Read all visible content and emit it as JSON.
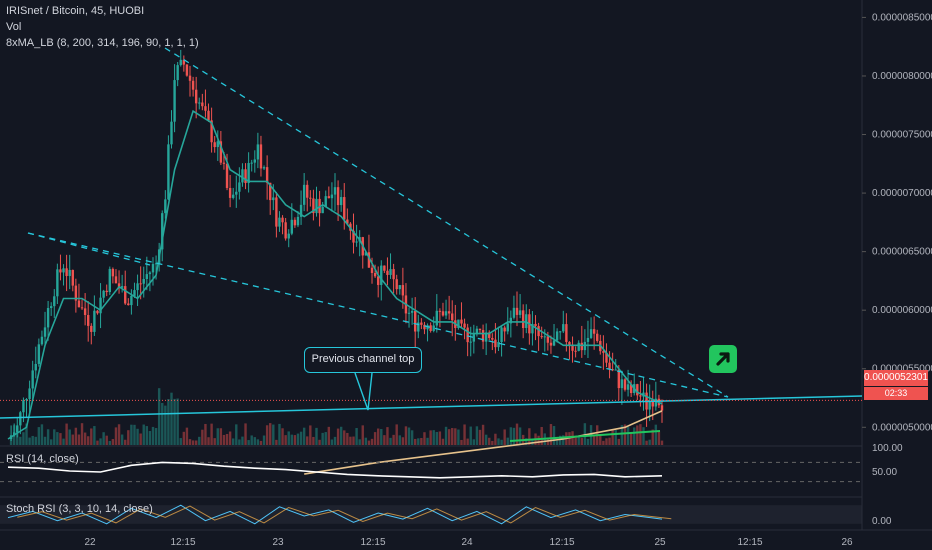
{
  "header": {
    "symbol_line": "IRISnet / Bitcoin, 45, HUOBI",
    "volume_label": "Vol",
    "ma_label": "8xMA_LB (8, 200, 314, 196, 90, 1, 1, 1)",
    "rsi_label": "RSI (14, close)",
    "stoch_label": "Stoch RSI (3, 3, 10, 14, close)"
  },
  "price_tag": "0.0000052301",
  "countdown": "02:33",
  "annotation": "Previous channel top",
  "colors": {
    "background": "#131722",
    "up": "#26a69a",
    "down": "#ef5350",
    "ma_fast": "#26a69a",
    "ma_slow": "#e6c28c",
    "trendline": "#26c6da",
    "green_line": "#22c55e",
    "rsi_line": "#ffffff"
  },
  "icons": {
    "signal": "arrow-up-right-icon"
  },
  "chart_data": [
    {
      "type": "candlestick",
      "title": "IRISnet / Bitcoin, 45, HUOBI",
      "x_ticks": [
        "22",
        "12:15",
        "23",
        "12:15",
        "24",
        "12:15",
        "25",
        "12:15",
        "26"
      ],
      "y_ticks": [
        "0.0000085000",
        "0.0000080000",
        "0.0000075000",
        "0.0000070000",
        "0.0000065000",
        "0.0000060000",
        "0.0000055000",
        "0.0000050000"
      ],
      "ylim": [
        4.9e-06,
        8.7e-06
      ],
      "last_price": 5.2301e-06,
      "close_path": [
        [
          0,
          4.9e-06
        ],
        [
          3,
          5e-06
        ],
        [
          6,
          5.3e-06
        ],
        [
          9,
          5.6e-06
        ],
        [
          12,
          5.9e-06
        ],
        [
          15,
          6.2e-06
        ],
        [
          18,
          6.4e-06
        ],
        [
          21,
          6.2e-06
        ],
        [
          24,
          6e-06
        ],
        [
          27,
          5.9e-06
        ],
        [
          30,
          6.1e-06
        ],
        [
          33,
          6.3e-06
        ],
        [
          36,
          6.2e-06
        ],
        [
          39,
          6.1e-06
        ],
        [
          42,
          6.2e-06
        ],
        [
          45,
          6.3e-06
        ],
        [
          48,
          6.4e-06
        ],
        [
          51,
          7e-06
        ],
        [
          54,
          8e-06
        ],
        [
          57,
          8.1e-06
        ],
        [
          60,
          7.9e-06
        ],
        [
          63,
          7.7e-06
        ],
        [
          66,
          7.5e-06
        ],
        [
          69,
          7.3e-06
        ],
        [
          72,
          6.9e-06
        ],
        [
          75,
          7.1e-06
        ],
        [
          78,
          7.2e-06
        ],
        [
          81,
          7.4e-06
        ],
        [
          84,
          7.1e-06
        ],
        [
          87,
          6.8e-06
        ],
        [
          90,
          6.7e-06
        ],
        [
          93,
          6.8e-06
        ],
        [
          96,
          7e-06
        ],
        [
          99,
          6.9e-06
        ],
        [
          102,
          6.9e-06
        ],
        [
          105,
          7e-06
        ],
        [
          108,
          6.9e-06
        ],
        [
          111,
          6.7e-06
        ],
        [
          114,
          6.6e-06
        ],
        [
          117,
          6.4e-06
        ],
        [
          120,
          6.3e-06
        ],
        [
          123,
          6.3e-06
        ],
        [
          126,
          6.2e-06
        ],
        [
          129,
          6e-06
        ],
        [
          132,
          5.9e-06
        ],
        [
          135,
          5.9e-06
        ],
        [
          138,
          5.9e-06
        ],
        [
          141,
          6e-06
        ],
        [
          144,
          5.9e-06
        ],
        [
          147,
          5.8e-06
        ],
        [
          150,
          5.8e-06
        ],
        [
          153,
          5.8e-06
        ],
        [
          156,
          5.8e-06
        ],
        [
          159,
          5.7e-06
        ],
        [
          162,
          5.9e-06
        ],
        [
          165,
          6e-06
        ],
        [
          168,
          5.9e-06
        ],
        [
          171,
          5.8e-06
        ],
        [
          174,
          5.7e-06
        ],
        [
          177,
          5.7e-06
        ],
        [
          180,
          5.8e-06
        ],
        [
          183,
          5.7e-06
        ],
        [
          186,
          5.7e-06
        ],
        [
          189,
          5.8e-06
        ],
        [
          192,
          5.7e-06
        ],
        [
          195,
          5.5e-06
        ],
        [
          198,
          5.4e-06
        ],
        [
          201,
          5.3e-06
        ],
        [
          204,
          5.3e-06
        ],
        [
          207,
          5.2e-06
        ],
        [
          210,
          5.3e-06
        ],
        [
          212,
          5.2301e-06
        ]
      ],
      "ma_fast": [
        [
          0,
          4.9e-06
        ],
        [
          6,
          5e-06
        ],
        [
          12,
          5.7e-06
        ],
        [
          18,
          6.1e-06
        ],
        [
          24,
          6.1e-06
        ],
        [
          30,
          6e-06
        ],
        [
          36,
          6.2e-06
        ],
        [
          42,
          6.1e-06
        ],
        [
          48,
          6.3e-06
        ],
        [
          54,
          7.2e-06
        ],
        [
          60,
          7.7e-06
        ],
        [
          66,
          7.6e-06
        ],
        [
          72,
          7.2e-06
        ],
        [
          78,
          7.1e-06
        ],
        [
          84,
          7.1e-06
        ],
        [
          90,
          6.9e-06
        ],
        [
          96,
          6.8e-06
        ],
        [
          102,
          6.9e-06
        ],
        [
          108,
          6.8e-06
        ],
        [
          114,
          6.6e-06
        ],
        [
          120,
          6.3e-06
        ],
        [
          126,
          6.1e-06
        ],
        [
          132,
          6e-06
        ],
        [
          138,
          5.9e-06
        ],
        [
          144,
          5.9e-06
        ],
        [
          150,
          5.8e-06
        ],
        [
          156,
          5.8e-06
        ],
        [
          162,
          5.9e-06
        ],
        [
          168,
          5.9e-06
        ],
        [
          174,
          5.8e-06
        ],
        [
          180,
          5.7e-06
        ],
        [
          186,
          5.7e-06
        ],
        [
          192,
          5.7e-06
        ],
        [
          198,
          5.5e-06
        ],
        [
          204,
          5.3e-06
        ],
        [
          212,
          5.2e-06
        ]
      ],
      "ma_slow": [
        [
          96,
          4.6e-06
        ],
        [
          120,
          4.7e-06
        ],
        [
          150,
          4.8e-06
        ],
        [
          180,
          4.9e-06
        ],
        [
          200,
          5e-06
        ],
        [
          212,
          5.14e-06
        ]
      ]
    },
    {
      "type": "line",
      "title": "RSI (14, close)",
      "y_ticks": [
        "100.00",
        "50.00"
      ],
      "ylim": [
        0,
        100
      ],
      "values": [
        [
          0,
          60
        ],
        [
          10,
          58
        ],
        [
          20,
          52
        ],
        [
          30,
          50
        ],
        [
          40,
          64
        ],
        [
          50,
          70
        ],
        [
          60,
          68
        ],
        [
          70,
          62
        ],
        [
          80,
          58
        ],
        [
          90,
          55
        ],
        [
          100,
          50
        ],
        [
          110,
          45
        ],
        [
          120,
          42
        ],
        [
          130,
          40
        ],
        [
          140,
          38
        ],
        [
          150,
          40
        ],
        [
          160,
          42
        ],
        [
          170,
          40
        ],
        [
          180,
          44
        ],
        [
          190,
          45
        ],
        [
          200,
          40
        ],
        [
          212,
          42
        ]
      ]
    },
    {
      "type": "line",
      "title": "Stoch RSI (3, 3, 10, 14, close)",
      "y_ticks": [
        "0.00"
      ],
      "ylim": [
        0,
        100
      ],
      "values": [
        [
          0,
          40
        ],
        [
          8,
          60
        ],
        [
          16,
          30
        ],
        [
          24,
          55
        ],
        [
          32,
          20
        ],
        [
          40,
          70
        ],
        [
          48,
          40
        ],
        [
          56,
          80
        ],
        [
          64,
          30
        ],
        [
          72,
          60
        ],
        [
          80,
          20
        ],
        [
          88,
          75
        ],
        [
          96,
          45
        ],
        [
          104,
          65
        ],
        [
          112,
          25
        ],
        [
          120,
          55
        ],
        [
          128,
          35
        ],
        [
          136,
          70
        ],
        [
          144,
          30
        ],
        [
          152,
          60
        ],
        [
          160,
          20
        ],
        [
          168,
          75
        ],
        [
          176,
          40
        ],
        [
          184,
          65
        ],
        [
          192,
          30
        ],
        [
          200,
          50
        ],
        [
          212,
          35
        ]
      ]
    }
  ]
}
